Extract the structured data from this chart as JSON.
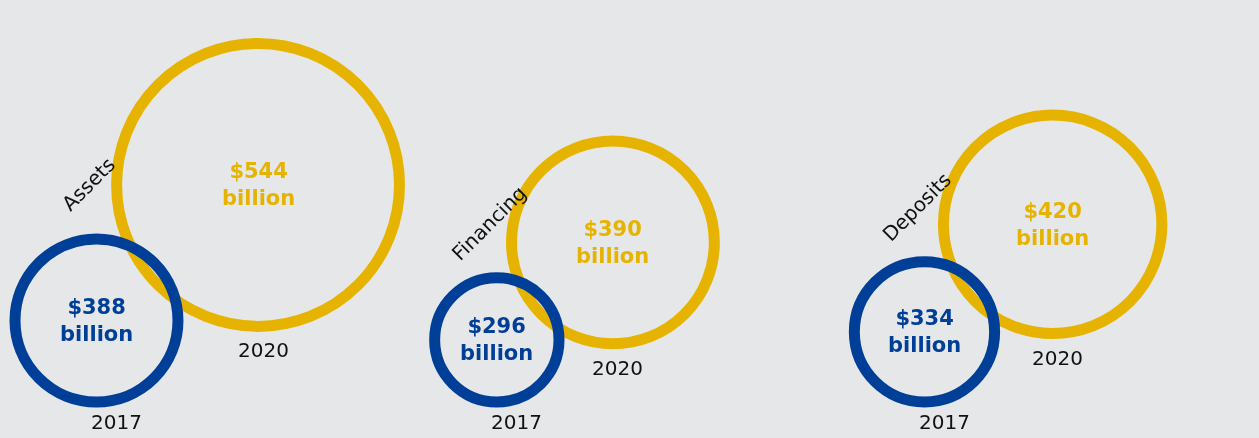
{
  "chart_data": [
    {
      "type": "other",
      "title": "Assets",
      "categories": [
        "2017",
        "2020"
      ],
      "values": [
        388,
        544
      ],
      "value_labels": [
        "$388 billion",
        "$544 billion"
      ],
      "colors": [
        "#003f98",
        "#e6b400"
      ]
    },
    {
      "type": "other",
      "title": "Financing",
      "categories": [
        "2017",
        "2020"
      ],
      "values": [
        296,
        390
      ],
      "value_labels": [
        "$296 billion",
        "$390 billion"
      ],
      "colors": [
        "#003f98",
        "#e6b400"
      ]
    },
    {
      "type": "other",
      "title": "Deposits",
      "categories": [
        "2017",
        "2020"
      ],
      "values": [
        334,
        420
      ],
      "value_labels": [
        "$334 billion",
        "$420 billion"
      ],
      "colors": [
        "#003f98",
        "#e6b400"
      ]
    }
  ]
}
